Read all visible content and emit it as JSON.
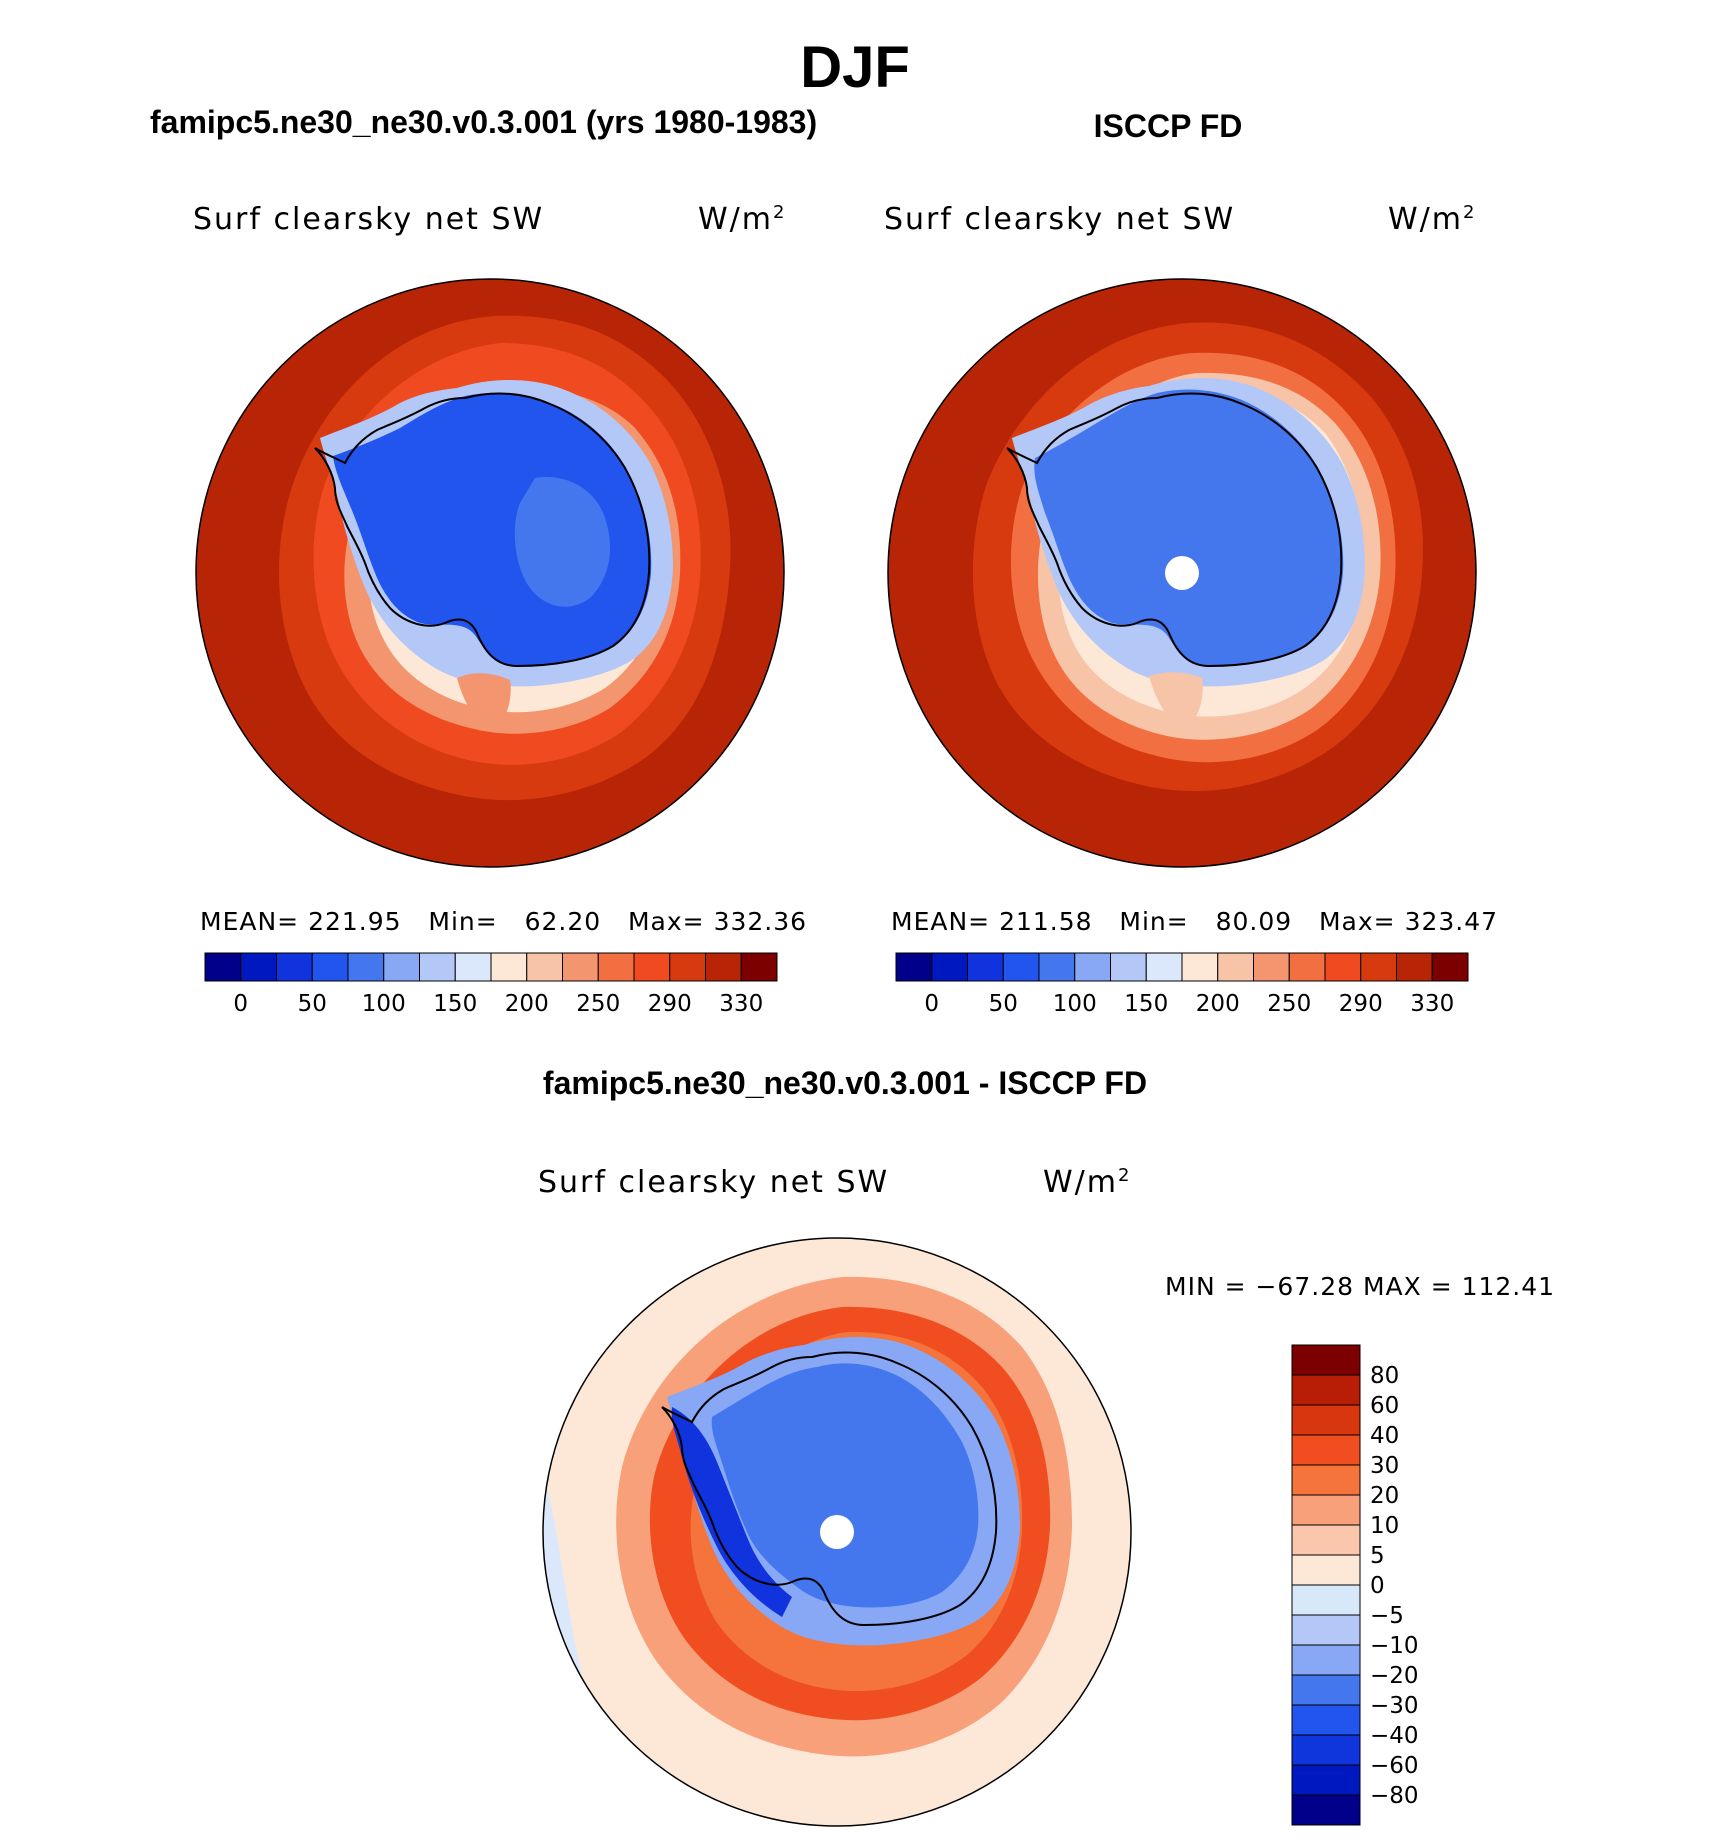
{
  "figure": {
    "season": "DJF",
    "left_title": "famipc5.ne30_ne30.v0.3.001 (yrs 1980-1983)",
    "right_title": "ISCCP FD",
    "bottom_title": "famipc5.ne30_ne30.v0.3.001 - ISCCP FD"
  },
  "panels": {
    "model": {
      "variable": "Surf clearsky net SW",
      "units": "W/m",
      "units_exp": "2",
      "mean_label": "MEAN=",
      "mean": "221.95",
      "min_label": "Min=",
      "min": "62.20",
      "max_label": "Max=",
      "max": "332.36"
    },
    "obs": {
      "variable": "Surf clearsky net SW",
      "units": "W/m",
      "units_exp": "2",
      "mean_label": "MEAN=",
      "mean": "211.58",
      "min_label": "Min=",
      "min": "80.09",
      "max_label": "Max=",
      "max": "323.47"
    },
    "diff": {
      "variable": "Surf clearsky net SW",
      "units": "W/m",
      "units_exp": "2",
      "minmax": "MIN = −67.28 MAX = 112.41"
    }
  },
  "chart_data": [
    {
      "type": "heatmap",
      "name": "model",
      "title": "famipc5.ne30_ne30.v0.3.001 (yrs 1980-1983)",
      "projection": "south polar stereographic",
      "colorbar_tick_labels": [
        "0",
        "50",
        "100",
        "150",
        "200",
        "250",
        "290",
        "330"
      ],
      "colorbar_colors": [
        "#00008b",
        "#0018c0",
        "#1133dd",
        "#2255ee",
        "#4477ee",
        "#88a8f5",
        "#b4c8f8",
        "#dbe8fb",
        "#fde8d8",
        "#f8c4a8",
        "#f39670",
        "#f26f42",
        "#f04a20",
        "#d83a10",
        "#b82506",
        "#7c0000"
      ],
      "stats": {
        "mean": 221.95,
        "min": 62.2,
        "max": 332.36
      }
    },
    {
      "type": "heatmap",
      "name": "obs",
      "title": "ISCCP FD",
      "projection": "south polar stereographic",
      "colorbar_tick_labels": [
        "0",
        "50",
        "100",
        "150",
        "200",
        "250",
        "290",
        "330"
      ],
      "colorbar_colors": [
        "#00008b",
        "#0018c0",
        "#1133dd",
        "#2255ee",
        "#4477ee",
        "#88a8f5",
        "#b4c8f8",
        "#dbe8fb",
        "#fde8d8",
        "#f8c4a8",
        "#f39670",
        "#f26f42",
        "#f04a20",
        "#d83a10",
        "#b82506",
        "#7c0000"
      ],
      "stats": {
        "mean": 211.58,
        "min": 80.09,
        "max": 323.47
      }
    },
    {
      "type": "heatmap",
      "name": "difference",
      "title": "famipc5.ne30_ne30.v0.3.001 - ISCCP FD",
      "projection": "south polar stereographic",
      "colorbar_tick_labels": [
        "80",
        "60",
        "40",
        "30",
        "20",
        "10",
        "5",
        "0",
        "−5",
        "−10",
        "−20",
        "−30",
        "−40",
        "−60",
        "−80"
      ],
      "colorbar_colors": [
        "#7c0000",
        "#b81e05",
        "#d8360f",
        "#f04e20",
        "#f4743c",
        "#f8a07a",
        "#fbc7ac",
        "#fde8d8",
        "#d8e8fb",
        "#b4c8f8",
        "#88a8f5",
        "#4477ee",
        "#2255ee",
        "#0f35dd",
        "#0018c0",
        "#00008b"
      ],
      "stats": {
        "min": -67.28,
        "max": 112.41
      }
    }
  ]
}
